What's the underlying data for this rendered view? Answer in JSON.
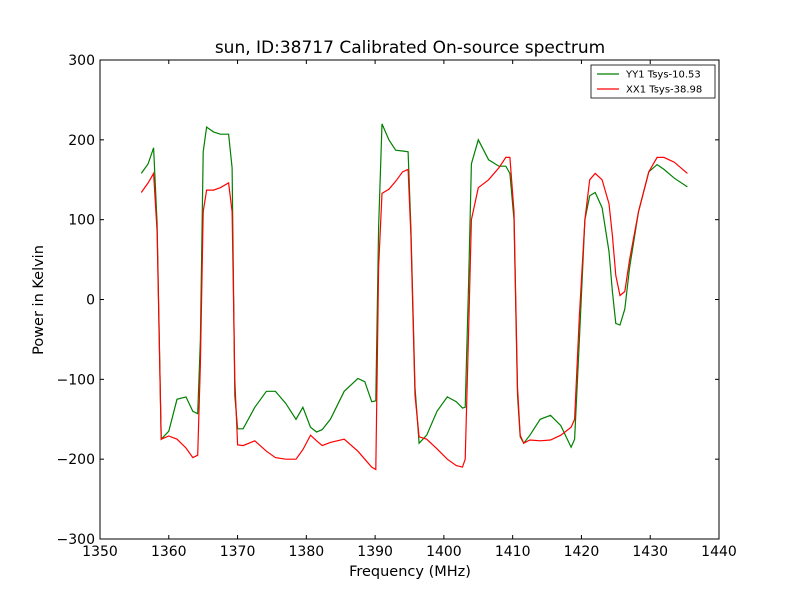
{
  "chart_data": {
    "type": "line",
    "title": "sun, ID:38717 Calibrated On-source spectrum",
    "xlabel": "Frequency (MHz)",
    "ylabel": "Power in Kelvin",
    "xlim": [
      1350,
      1440
    ],
    "ylim": [
      -300,
      300
    ],
    "xticks": [
      1350,
      1360,
      1370,
      1380,
      1390,
      1400,
      1410,
      1420,
      1430,
      1440
    ],
    "yticks": [
      -300,
      -200,
      -100,
      0,
      100,
      200,
      300
    ],
    "grid": false,
    "legend_position": "top-right",
    "series": [
      {
        "name": "YY1 Tsys-10.53",
        "color": "#008000",
        "x": [
          1356,
          1357,
          1357.8,
          1358.3,
          1358.9,
          1360,
          1361.2,
          1362.5,
          1363.5,
          1364.2,
          1364.6,
          1365,
          1365.5,
          1366.5,
          1367.5,
          1368.7,
          1369.2,
          1369.6,
          1370,
          1370.8,
          1372.5,
          1374.2,
          1375.5,
          1377,
          1378.5,
          1379.5,
          1380.6,
          1381.5,
          1382.3,
          1383.5,
          1385.5,
          1387.5,
          1388.5,
          1389.5,
          1390.1,
          1390.5,
          1391,
          1392,
          1393,
          1394,
          1394.8,
          1395.2,
          1395.8,
          1396.4,
          1397.5,
          1399,
          1400.5,
          1401.8,
          1402.7,
          1403.1,
          1403.6,
          1404,
          1405,
          1406.5,
          1408,
          1409,
          1409.6,
          1410.2,
          1410.7,
          1411.1,
          1411.6,
          1412.5,
          1414,
          1415.5,
          1417,
          1418.5,
          1419,
          1419.7,
          1420.5,
          1421.2,
          1422,
          1423,
          1424,
          1424.5,
          1425,
          1425.6,
          1426.3,
          1427,
          1428.3,
          1429.8,
          1431,
          1432,
          1433.5,
          1435.4
        ],
        "values": [
          158,
          170,
          190,
          95,
          -175,
          -165,
          -125,
          -122,
          -140,
          -143,
          -50,
          185,
          216,
          210,
          207,
          207,
          165,
          -120,
          -162,
          -162,
          -135,
          -115,
          -115,
          -130,
          -150,
          -135,
          -160,
          -166,
          -163,
          -150,
          -115,
          -99,
          -103,
          -128,
          -127,
          90,
          220,
          200,
          187,
          186,
          185,
          90,
          -110,
          -180,
          -170,
          -140,
          -122,
          -128,
          -136,
          -135,
          20,
          170,
          200,
          175,
          167,
          167,
          158,
          100,
          -120,
          -172,
          -180,
          -170,
          -150,
          -145,
          -158,
          -185,
          -175,
          -50,
          100,
          130,
          134,
          115,
          60,
          10,
          -30,
          -32,
          -12,
          40,
          110,
          160,
          169,
          163,
          152,
          141
        ]
      },
      {
        "name": "XX1 Tsys-38.98",
        "color": "#ff0000",
        "x": [
          1356,
          1357,
          1357.8,
          1358.3,
          1358.9,
          1360,
          1361.2,
          1362.5,
          1363.5,
          1364.2,
          1364.6,
          1365,
          1365.5,
          1366.5,
          1367.5,
          1368.7,
          1369.2,
          1369.6,
          1370,
          1370.8,
          1372.5,
          1374.2,
          1375.5,
          1377,
          1378.5,
          1379.5,
          1380.6,
          1381.5,
          1382.3,
          1383.5,
          1385.5,
          1387.5,
          1388.5,
          1389.5,
          1390.1,
          1390.5,
          1391,
          1392,
          1393,
          1394,
          1394.8,
          1395.2,
          1395.8,
          1396.4,
          1397.5,
          1399,
          1400.5,
          1401.8,
          1402.7,
          1403.1,
          1403.6,
          1404,
          1405,
          1406.5,
          1408,
          1409,
          1409.6,
          1410.2,
          1410.7,
          1411.1,
          1411.6,
          1412.5,
          1414,
          1415.5,
          1417,
          1418.5,
          1419,
          1419.7,
          1420.5,
          1421.2,
          1422,
          1423,
          1424,
          1424.5,
          1425,
          1425.6,
          1426.3,
          1427,
          1428.3,
          1429.8,
          1431,
          1432,
          1433.5,
          1435.4
        ],
        "values": [
          134,
          146,
          158,
          85,
          -175,
          -171,
          -175,
          -186,
          -198,
          -195,
          -80,
          110,
          137,
          137,
          140,
          146,
          110,
          -100,
          -182,
          -183,
          -177,
          -190,
          -198,
          -200,
          -200,
          -188,
          -170,
          -177,
          -183,
          -179,
          -175,
          -190,
          -200,
          -210,
          -213,
          40,
          133,
          138,
          148,
          160,
          163,
          80,
          -120,
          -172,
          -175,
          -187,
          -200,
          -208,
          -210,
          -200,
          -40,
          100,
          140,
          150,
          165,
          178,
          178,
          110,
          -110,
          -170,
          -180,
          -176,
          -177,
          -176,
          -170,
          -160,
          -150,
          -20,
          100,
          150,
          158,
          150,
          120,
          80,
          30,
          5,
          10,
          50,
          110,
          160,
          178,
          178,
          172,
          158
        ]
      }
    ]
  }
}
